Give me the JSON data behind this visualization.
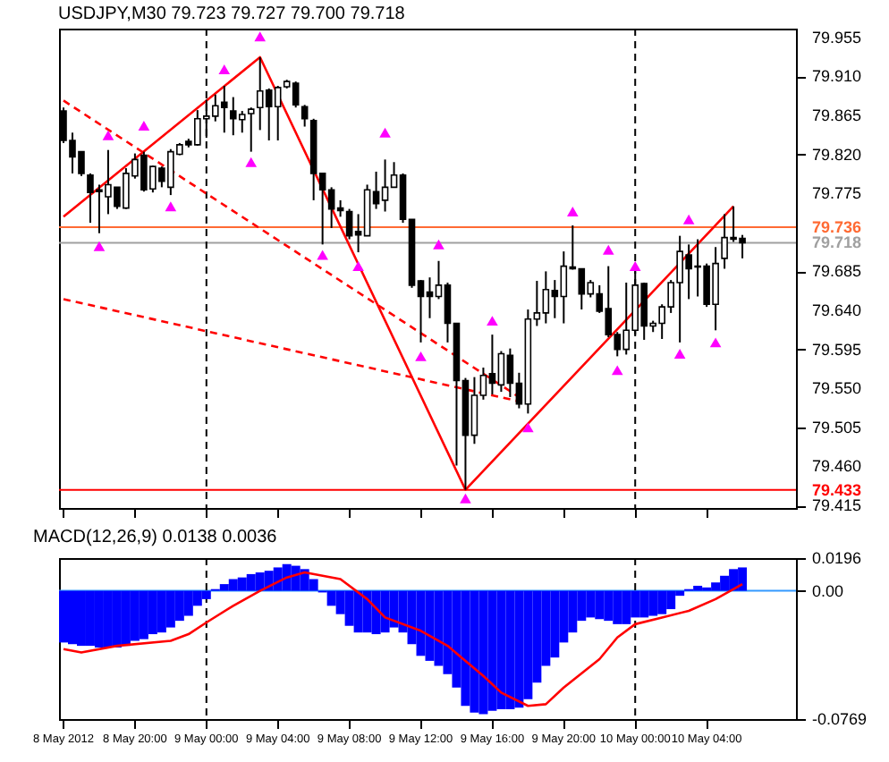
{
  "chart_data": [
    {
      "type": "candlestick",
      "title": "USDJPY,M30  79.723 79.727 79.700 79.718",
      "color": "#000000",
      "x": [
        "2012-05-08T16:00",
        "2012-05-08T16:30",
        "2012-05-08T17:00",
        "2012-05-08T17:30",
        "2012-05-08T18:00",
        "2012-05-08T18:30",
        "2012-05-08T19:00",
        "2012-05-08T19:30",
        "2012-05-08T20:00",
        "2012-05-08T20:30",
        "2012-05-08T21:00",
        "2012-05-08T21:30",
        "2012-05-08T22:00",
        "2012-05-08T22:30",
        "2012-05-08T23:00",
        "2012-05-08T23:30",
        "2012-05-09T00:00",
        "2012-05-09T00:30",
        "2012-05-09T01:00",
        "2012-05-09T01:30",
        "2012-05-09T02:00",
        "2012-05-09T02:30",
        "2012-05-09T03:00",
        "2012-05-09T03:30",
        "2012-05-09T04:00",
        "2012-05-09T04:30",
        "2012-05-09T05:00",
        "2012-05-09T05:30",
        "2012-05-09T06:00",
        "2012-05-09T06:30",
        "2012-05-09T07:00",
        "2012-05-09T07:30",
        "2012-05-09T08:00",
        "2012-05-09T08:30",
        "2012-05-09T09:00",
        "2012-05-09T09:30",
        "2012-05-09T10:00",
        "2012-05-09T10:30",
        "2012-05-09T11:00",
        "2012-05-09T11:30",
        "2012-05-09T12:00",
        "2012-05-09T12:30",
        "2012-05-09T13:00",
        "2012-05-09T13:30",
        "2012-05-09T14:00",
        "2012-05-09T14:30",
        "2012-05-09T15:00",
        "2012-05-09T15:30",
        "2012-05-09T16:00",
        "2012-05-09T16:30",
        "2012-05-09T17:00",
        "2012-05-09T17:30",
        "2012-05-09T18:00",
        "2012-05-09T18:30",
        "2012-05-09T19:00",
        "2012-05-09T19:30",
        "2012-05-09T20:00",
        "2012-05-09T20:30",
        "2012-05-09T21:00",
        "2012-05-09T21:30",
        "2012-05-09T22:00",
        "2012-05-09T22:30",
        "2012-05-09T23:00",
        "2012-05-09T23:30",
        "2012-05-10T00:00",
        "2012-05-10T00:30",
        "2012-05-10T01:00",
        "2012-05-10T01:30",
        "2012-05-10T02:00",
        "2012-05-10T02:30",
        "2012-05-10T03:00",
        "2012-05-10T03:30",
        "2012-05-10T04:00",
        "2012-05-10T04:30",
        "2012-05-10T05:00",
        "2012-05-10T05:30",
        "2012-05-10T06:00"
      ],
      "ohlc": [
        [
          79.87,
          79.874,
          79.833,
          79.836
        ],
        [
          79.836,
          79.845,
          79.798,
          79.817
        ],
        [
          79.823,
          79.823,
          79.795,
          79.798
        ],
        [
          79.796,
          79.798,
          79.741,
          79.776
        ],
        [
          79.779,
          79.785,
          79.729,
          79.777
        ],
        [
          79.771,
          79.825,
          79.751,
          79.785
        ],
        [
          79.782,
          79.782,
          79.757,
          79.76
        ],
        [
          79.758,
          79.804,
          79.757,
          79.798
        ],
        [
          79.795,
          79.821,
          79.792,
          79.814
        ],
        [
          79.819,
          79.823,
          79.777,
          79.779
        ],
        [
          79.78,
          79.807,
          79.776,
          79.806
        ],
        [
          79.804,
          79.806,
          79.782,
          79.789
        ],
        [
          79.782,
          79.826,
          79.773,
          79.823
        ],
        [
          79.82,
          79.833,
          79.819,
          79.831
        ],
        [
          79.835,
          79.838,
          79.828,
          79.831
        ],
        [
          79.831,
          79.871,
          79.83,
          79.861
        ],
        [
          79.861,
          79.883,
          79.839,
          79.864
        ],
        [
          79.864,
          79.889,
          79.858,
          79.876
        ],
        [
          79.88,
          79.899,
          79.845,
          79.874
        ],
        [
          79.87,
          79.886,
          79.842,
          79.861
        ],
        [
          79.86,
          79.87,
          79.845,
          79.866
        ],
        [
          79.867,
          79.874,
          79.823,
          79.872
        ],
        [
          79.874,
          79.932,
          79.848,
          79.893
        ],
        [
          79.894,
          79.896,
          79.836,
          79.875
        ],
        [
          79.875,
          79.899,
          79.836,
          79.897
        ],
        [
          79.898,
          79.906,
          79.896,
          79.904
        ],
        [
          79.902,
          79.904,
          79.874,
          79.877
        ],
        [
          79.875,
          79.877,
          79.852,
          79.861
        ],
        [
          79.859,
          79.861,
          79.767,
          79.798
        ],
        [
          79.798,
          79.798,
          79.716,
          79.779
        ],
        [
          79.779,
          79.782,
          79.735,
          79.757
        ],
        [
          79.758,
          79.767,
          79.748,
          79.755
        ],
        [
          79.754,
          79.757,
          79.722,
          79.726
        ],
        [
          79.731,
          79.751,
          79.707,
          79.727
        ],
        [
          79.726,
          79.785,
          79.726,
          79.779
        ],
        [
          79.777,
          79.8,
          79.757,
          79.763
        ],
        [
          79.767,
          79.814,
          79.754,
          79.782
        ],
        [
          79.782,
          79.811,
          79.782,
          79.796
        ],
        [
          79.796,
          79.798,
          79.741,
          79.745
        ],
        [
          79.745,
          79.745,
          79.666,
          79.669
        ],
        [
          79.674,
          79.675,
          79.603,
          79.656
        ],
        [
          79.661,
          79.678,
          79.631,
          79.656
        ],
        [
          79.656,
          79.697,
          79.653,
          79.669
        ],
        [
          79.669,
          79.672,
          79.603,
          79.625
        ],
        [
          79.625,
          79.625,
          79.461,
          79.559
        ],
        [
          79.559,
          79.562,
          79.433,
          79.496
        ],
        [
          79.496,
          79.563,
          79.486,
          79.542
        ],
        [
          79.542,
          79.574,
          79.537,
          79.565
        ],
        [
          79.567,
          79.612,
          79.543,
          79.556
        ],
        [
          79.554,
          79.593,
          79.546,
          79.59
        ],
        [
          79.588,
          79.596,
          79.54,
          79.556
        ],
        [
          79.556,
          79.568,
          79.527,
          79.532
        ],
        [
          79.532,
          79.641,
          79.521,
          79.63
        ],
        [
          79.63,
          79.674,
          79.622,
          79.637
        ],
        [
          79.637,
          79.685,
          79.625,
          79.664
        ],
        [
          79.663,
          79.675,
          79.631,
          79.656
        ],
        [
          79.656,
          79.708,
          79.625,
          79.691
        ],
        [
          79.69,
          79.738,
          79.687,
          79.688
        ],
        [
          79.688,
          79.688,
          79.641,
          79.659
        ],
        [
          79.659,
          79.675,
          79.655,
          79.672
        ],
        [
          79.659,
          79.669,
          79.637,
          79.639
        ],
        [
          79.642,
          79.691,
          79.609,
          79.612
        ],
        [
          79.612,
          79.615,
          79.587,
          79.595
        ],
        [
          79.595,
          79.672,
          79.589,
          79.617
        ],
        [
          79.617,
          79.685,
          79.612,
          79.669
        ],
        [
          79.671,
          79.672,
          79.606,
          79.622
        ],
        [
          79.622,
          79.628,
          79.615,
          79.625
        ],
        [
          79.625,
          79.647,
          79.607,
          79.644
        ],
        [
          79.644,
          79.675,
          79.637,
          79.672
        ],
        [
          79.672,
          79.726,
          79.603,
          79.708
        ],
        [
          79.704,
          79.716,
          79.653,
          79.688
        ],
        [
          79.69,
          79.722,
          79.656,
          79.691
        ],
        [
          79.691,
          79.694,
          79.644,
          79.647
        ],
        [
          79.647,
          79.713,
          79.617,
          79.694
        ],
        [
          79.7,
          79.751,
          79.688,
          79.724
        ],
        [
          79.724,
          79.76,
          79.719,
          79.722
        ],
        [
          79.723,
          79.727,
          79.7,
          79.718
        ]
      ],
      "series": [
        {
          "type": "line",
          "color": "#ff0000",
          "line_style": "solid",
          "x": [
            "2012-05-08T16:00",
            "2012-05-09T03:00",
            "2012-05-09T14:30",
            "2012-05-10T05:30"
          ],
          "values": [
            79.748,
            79.932,
            79.433,
            79.76
          ]
        },
        {
          "type": "line",
          "color": "#ff0000",
          "line_style": "dashed",
          "x": [
            "2012-05-08T16:00",
            "2012-05-09T17:30"
          ],
          "values": [
            79.882,
            79.54
          ]
        },
        {
          "type": "line",
          "color": "#ff0000",
          "line_style": "dashed",
          "x": [
            "2012-05-08T16:00",
            "2012-05-09T17:30"
          ],
          "values": [
            79.653,
            79.535
          ]
        },
        {
          "type": "scatter",
          "color": "#ff00ff",
          "marker": "triangle",
          "x": [
            "2012-05-08T18:30",
            "2012-05-08T20:30",
            "2012-05-09T01:00",
            "2012-05-09T03:00",
            "2012-05-09T10:00",
            "2012-05-09T13:00",
            "2012-05-09T16:00",
            "2012-05-09T20:30",
            "2012-05-09T22:30",
            "2012-05-10T00:00",
            "2012-05-10T03:00"
          ],
          "values": [
            79.842,
            79.853,
            79.918,
            79.956,
            79.845,
            79.716,
            79.628,
            79.754,
            79.71,
            79.691,
            79.745
          ]
        },
        {
          "type": "scatter",
          "color": "#ff00ff",
          "marker": "triangle",
          "x": [
            "2012-05-08T18:00",
            "2012-05-08T22:00",
            "2012-05-09T02:30",
            "2012-05-09T06:30",
            "2012-05-09T08:30",
            "2012-05-09T12:00",
            "2012-05-09T14:30",
            "2012-05-09T18:00",
            "2012-05-09T23:00",
            "2012-05-10T02:30",
            "2012-05-10T04:30"
          ],
          "values": [
            79.714,
            79.76,
            79.811,
            79.704,
            79.691,
            79.587,
            79.423,
            79.505,
            79.571,
            79.59,
            79.603
          ]
        }
      ],
      "xlim": [
        "2012-05-08T15:45",
        "2012-05-10T09:00"
      ],
      "xticks": [
        {
          "value": "2012-05-08T16:00",
          "label": null
        },
        {
          "value": "2012-05-08T20:00",
          "label": null
        },
        {
          "value": "2012-05-09T00:00",
          "label": null
        },
        {
          "value": "2012-05-09T04:00",
          "label": null
        },
        {
          "value": "2012-05-09T08:00",
          "label": null
        },
        {
          "value": "2012-05-09T12:00",
          "label": null
        },
        {
          "value": "2012-05-09T16:00",
          "label": null
        },
        {
          "value": "2012-05-09T20:00",
          "label": null
        },
        {
          "value": "2012-05-10T00:00",
          "label": null
        },
        {
          "value": "2012-05-10T04:00",
          "label": null
        }
      ],
      "ylim": [
        79.412,
        79.965
      ],
      "yticks": [
        79.955,
        {
          "value": 79.91,
          "label": "79.910"
        },
        79.865,
        {
          "value": 79.82,
          "label": "79.820"
        },
        79.775,
        79.685,
        {
          "value": 79.64,
          "label": "79.640"
        },
        79.595,
        {
          "value": 79.55,
          "label": "79.550"
        },
        79.505,
        {
          "value": 79.46,
          "label": "79.460"
        },
        79.415
      ],
      "ref_lines": [
        {
          "axis": "y",
          "value": 79.736,
          "label": "79.736",
          "color": "#ff6a33",
          "line_style": "solid"
        },
        {
          "axis": "y",
          "value": 79.718,
          "label": "79.718",
          "color": "#a0a0a0",
          "line_style": "solid"
        },
        {
          "axis": "y",
          "value": 79.433,
          "label": "79.433",
          "color": "#ff0000",
          "line_style": "solid"
        },
        {
          "axis": "x",
          "value": "2012-05-09T00:00",
          "color": "#000000",
          "line_style": "dashed"
        },
        {
          "axis": "x",
          "value": "2012-05-10T00:00",
          "color": "#000000",
          "line_style": "dashed"
        }
      ],
      "tick_labels": "y"
    },
    {
      "type": "bar",
      "title": "MACD(12,26,9) 0.0138 0.0036",
      "x": [
        "2012-05-08T16:00",
        "2012-05-08T16:30",
        "2012-05-08T17:00",
        "2012-05-08T17:30",
        "2012-05-08T18:00",
        "2012-05-08T18:30",
        "2012-05-08T19:00",
        "2012-05-08T19:30",
        "2012-05-08T20:00",
        "2012-05-08T20:30",
        "2012-05-08T21:00",
        "2012-05-08T21:30",
        "2012-05-08T22:00",
        "2012-05-08T22:30",
        "2012-05-08T23:00",
        "2012-05-08T23:30",
        "2012-05-09T00:00",
        "2012-05-09T00:30",
        "2012-05-09T01:00",
        "2012-05-09T01:30",
        "2012-05-09T02:00",
        "2012-05-09T02:30",
        "2012-05-09T03:00",
        "2012-05-09T03:30",
        "2012-05-09T04:00",
        "2012-05-09T04:30",
        "2012-05-09T05:00",
        "2012-05-09T05:30",
        "2012-05-09T06:00",
        "2012-05-09T06:30",
        "2012-05-09T07:00",
        "2012-05-09T07:30",
        "2012-05-09T08:00",
        "2012-05-09T08:30",
        "2012-05-09T09:00",
        "2012-05-09T09:30",
        "2012-05-09T10:00",
        "2012-05-09T10:30",
        "2012-05-09T11:00",
        "2012-05-09T11:30",
        "2012-05-09T12:00",
        "2012-05-09T12:30",
        "2012-05-09T13:00",
        "2012-05-09T13:30",
        "2012-05-09T14:00",
        "2012-05-09T14:30",
        "2012-05-09T15:00",
        "2012-05-09T15:30",
        "2012-05-09T16:00",
        "2012-05-09T16:30",
        "2012-05-09T17:00",
        "2012-05-09T17:30",
        "2012-05-09T18:00",
        "2012-05-09T18:30",
        "2012-05-09T19:00",
        "2012-05-09T19:30",
        "2012-05-09T20:00",
        "2012-05-09T20:30",
        "2012-05-09T21:00",
        "2012-05-09T21:30",
        "2012-05-09T22:00",
        "2012-05-09T22:30",
        "2012-05-09T23:00",
        "2012-05-09T23:30",
        "2012-05-10T00:00",
        "2012-05-10T00:30",
        "2012-05-10T01:00",
        "2012-05-10T01:30",
        "2012-05-10T02:00",
        "2012-05-10T02:30",
        "2012-05-10T03:00",
        "2012-05-10T03:30",
        "2012-05-10T04:00",
        "2012-05-10T04:30",
        "2012-05-10T05:00",
        "2012-05-10T05:30",
        "2012-05-10T06:00"
      ],
      "series": [
        {
          "color": "#0000ff",
          "values": [
            -0.031,
            -0.032,
            -0.033,
            -0.033,
            -0.034,
            -0.034,
            -0.034,
            -0.033,
            -0.03,
            -0.029,
            -0.026,
            -0.025,
            -0.022,
            -0.018,
            -0.015,
            -0.009,
            -0.005,
            0.001,
            0.004,
            0.007,
            0.008,
            0.01,
            0.011,
            0.012,
            0.014,
            0.016,
            0.015,
            0.013,
            0.007,
            -0.001,
            -0.009,
            -0.014,
            -0.021,
            -0.025,
            -0.025,
            -0.026,
            -0.025,
            -0.022,
            -0.025,
            -0.032,
            -0.039,
            -0.042,
            -0.045,
            -0.05,
            -0.058,
            -0.069,
            -0.073,
            -0.074,
            -0.072,
            -0.071,
            -0.071,
            -0.07,
            -0.065,
            -0.055,
            -0.045,
            -0.04,
            -0.031,
            -0.025,
            -0.018,
            -0.016,
            -0.017,
            -0.018,
            -0.02,
            -0.02,
            -0.016,
            -0.016,
            -0.015,
            -0.014,
            -0.011,
            -0.003,
            0.001,
            0.003,
            0.002,
            0.005,
            0.009,
            0.013,
            0.014
          ]
        },
        {
          "type": "line",
          "color": "#ff0000",
          "line_style": "solid",
          "x": [
            "2012-05-08T16:00",
            "2012-05-08T17:00",
            "2012-05-08T19:00",
            "2012-05-08T22:00",
            "2012-05-08T23:00",
            "2012-05-09T00:00",
            "2012-05-09T01:30",
            "2012-05-09T03:00",
            "2012-05-09T04:30",
            "2012-05-09T05:30",
            "2012-05-09T07:30",
            "2012-05-09T09:00",
            "2012-05-09T10:00",
            "2012-05-09T12:00",
            "2012-05-09T13:30",
            "2012-05-09T15:30",
            "2012-05-09T16:30",
            "2012-05-09T18:00",
            "2012-05-09T19:00",
            "2012-05-09T20:00",
            "2012-05-09T22:00",
            "2012-05-09T23:00",
            "2012-05-10T00:00",
            "2012-05-10T01:30",
            "2012-05-10T03:00",
            "2012-05-10T04:30",
            "2012-05-10T06:00"
          ],
          "values": [
            -0.035,
            -0.037,
            -0.033,
            -0.03,
            -0.026,
            -0.019,
            -0.009,
            0.0,
            0.008,
            0.011,
            0.007,
            -0.005,
            -0.016,
            -0.024,
            -0.033,
            -0.051,
            -0.061,
            -0.069,
            -0.068,
            -0.058,
            -0.041,
            -0.028,
            -0.02,
            -0.016,
            -0.012,
            -0.005,
            0.004
          ]
        }
      ],
      "xlim": [
        "2012-05-08T15:45",
        "2012-05-10T09:00"
      ],
      "xticks": [
        {
          "value": "2012-05-08T16:00",
          "label": "8 May 2012"
        },
        {
          "value": "2012-05-08T20:00",
          "label": "8 May 20:00"
        },
        {
          "value": "2012-05-09T00:00",
          "label": "9 May 00:00"
        },
        {
          "value": "2012-05-09T04:00",
          "label": "9 May 04:00"
        },
        {
          "value": "2012-05-09T08:00",
          "label": "9 May 08:00"
        },
        {
          "value": "2012-05-09T12:00",
          "label": "9 May 12:00"
        },
        {
          "value": "2012-05-09T16:00",
          "label": "9 May 16:00"
        },
        {
          "value": "2012-05-09T20:00",
          "label": "9 May 20:00"
        },
        {
          "value": "2012-05-10T00:00",
          "label": "10 May 00:00"
        },
        {
          "value": "2012-05-10T04:00",
          "label": "10 May 04:00"
        }
      ],
      "ylim": [
        -0.0769,
        0.0196
      ],
      "yticks": [
        0.0196,
        {
          "value": 0,
          "label": "0.00"
        },
        -0.0769
      ],
      "ref_lines": [
        {
          "axis": "y",
          "value": 0,
          "color": "#3399ff",
          "line_style": "solid"
        },
        {
          "axis": "x",
          "value": "2012-05-09T00:00",
          "color": "#000000",
          "line_style": "dashed"
        },
        {
          "axis": "x",
          "value": "2012-05-10T00:00",
          "color": "#000000",
          "line_style": "dashed"
        }
      ]
    }
  ]
}
